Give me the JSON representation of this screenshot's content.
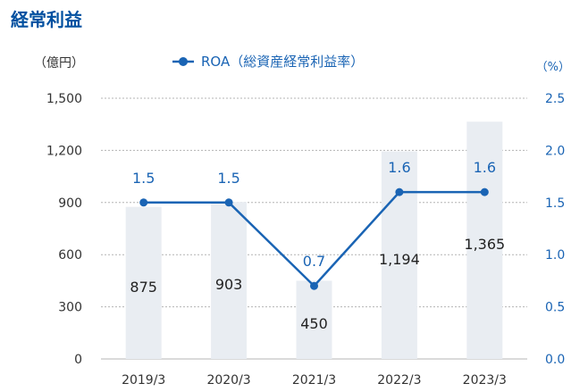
{
  "title": "経常利益",
  "left_unit": "（億円）",
  "right_unit": "（%）",
  "legend": {
    "label": "ROA（総資産経常利益率）"
  },
  "colors": {
    "title": "#0050a0",
    "bar": "#e9edf2",
    "line": "#1a64b4",
    "grid": "#b4b4b4",
    "axis_text": "#333333",
    "right_axis_text": "#1a64b4"
  },
  "chart_data": {
    "type": "bar+line",
    "categories": [
      "2019/3",
      "2020/3",
      "2021/3",
      "2022/3",
      "2023/3"
    ],
    "series": [
      {
        "axis": "left",
        "type": "bar",
        "values": [
          875,
          903,
          450,
          1194,
          1365
        ],
        "labels": [
          "875",
          "903",
          "450",
          "1,194",
          "1,365"
        ]
      },
      {
        "name": "ROA（総資産経常利益率）",
        "axis": "right",
        "type": "line",
        "values": [
          1.5,
          1.5,
          0.7,
          1.6,
          1.6
        ],
        "labels": [
          "1.5",
          "1.5",
          "0.7",
          "1.6",
          "1.6"
        ]
      }
    ],
    "left_axis": {
      "ylim": [
        0,
        1500
      ],
      "ticks": [
        0,
        300,
        600,
        900,
        1200,
        1500
      ],
      "tick_labels": [
        "0",
        "300",
        "600",
        "900",
        "1,200",
        "1,500"
      ]
    },
    "right_axis": {
      "ylim": [
        0,
        2.5
      ],
      "ticks": [
        0,
        0.5,
        1.0,
        1.5,
        2.0,
        2.5
      ],
      "tick_labels": [
        "0.0",
        "0.5",
        "1.0",
        "1.5",
        "2.0",
        "2.5"
      ]
    },
    "grid": true
  }
}
